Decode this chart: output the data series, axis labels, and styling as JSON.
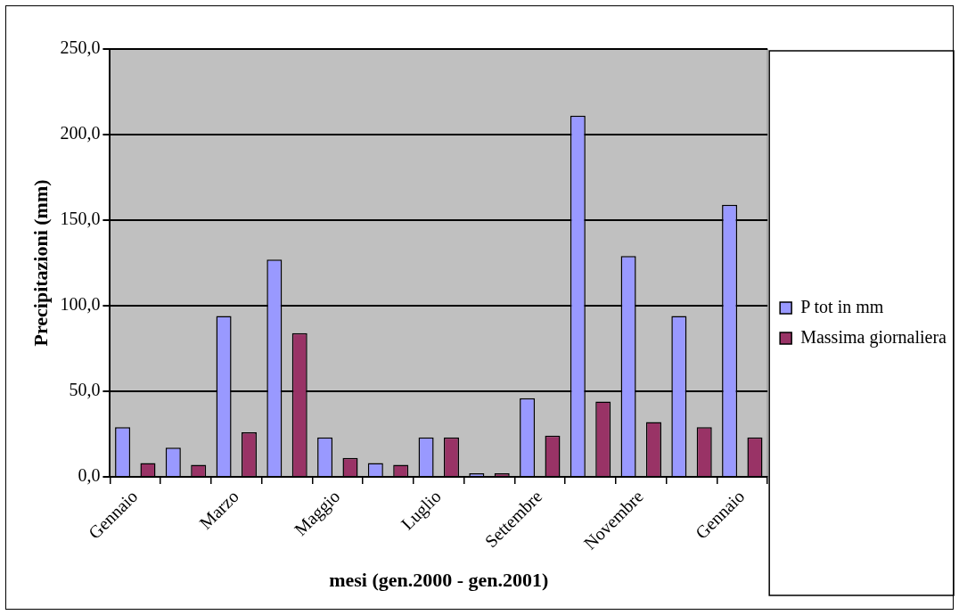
{
  "chart_data": {
    "type": "bar",
    "xlabel": "mesi (gen.2000 - gen.2001)",
    "ylabel": "Precipitazioni (mm)",
    "categories": [
      "Gennaio",
      null,
      "Marzo",
      null,
      "Maggio",
      null,
      "Luglio",
      null,
      "Settembre",
      null,
      "Novembre",
      null,
      "Gennaio"
    ],
    "series": [
      {
        "name": "P tot in mm",
        "color": "#9999ff",
        "values": [
          29,
          17,
          94,
          127,
          23,
          8,
          23,
          2,
          46,
          211,
          129,
          94,
          159
        ]
      },
      {
        "name": "Massima giornaliera",
        "color": "#993366",
        "values": [
          8,
          7,
          26,
          84,
          11,
          7,
          23,
          2,
          24,
          44,
          32,
          29,
          23
        ]
      }
    ],
    "ylim": [
      0,
      250
    ],
    "yticks": [
      {
        "value": 0,
        "label": "0,0"
      },
      {
        "value": 50,
        "label": "50,0"
      },
      {
        "value": 100,
        "label": "100,0"
      },
      {
        "value": 150,
        "label": "150,0"
      },
      {
        "value": 200,
        "label": "200,0"
      },
      {
        "value": 250,
        "label": "250,0"
      }
    ],
    "grid": "y",
    "legend": "right"
  }
}
